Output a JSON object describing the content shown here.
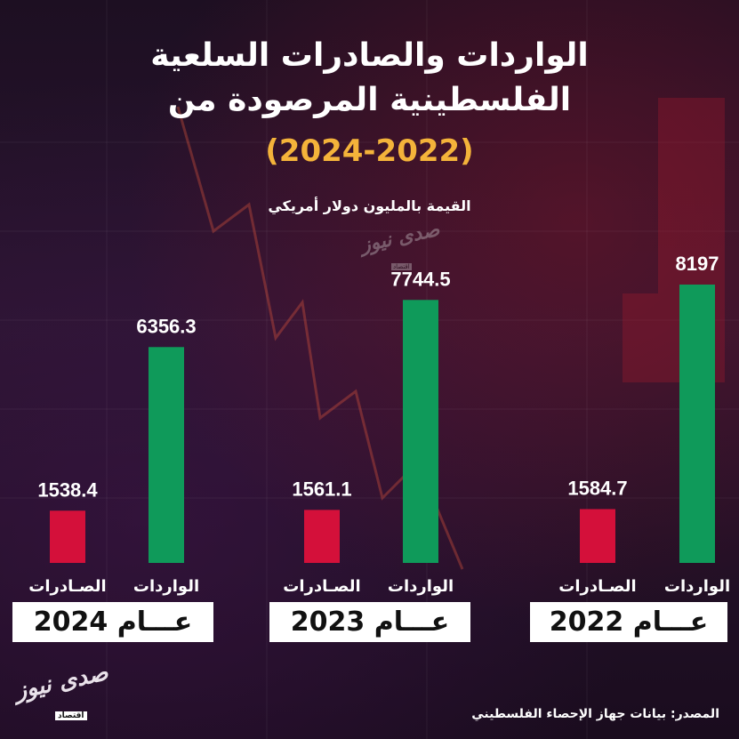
{
  "header": {
    "title_line1": "الواردات والصادرات السلعية",
    "title_line2": "الفلسطينية المرصودة من",
    "title_line3": "(2024-2022)",
    "subtitle": "القيمة بالمليون دولار أمريكي"
  },
  "colors": {
    "exports": "#d4103a",
    "imports": "#0f9a5a",
    "title_accent": "#f4b33a"
  },
  "groups": [
    {
      "year_label": "عـــام 2024",
      "exports_label": "الصـادرات",
      "imports_label": "الواردات"
    },
    {
      "year_label": "عـــام 2023",
      "exports_label": "الصـادرات",
      "imports_label": "الواردات"
    },
    {
      "year_label": "عـــام 2022",
      "exports_label": "الصـادرات",
      "imports_label": "الواردات"
    }
  ],
  "chart_data": {
    "type": "bar",
    "title": "الواردات والصادرات السلعية الفلسطينية المرصودة من (2024-2022)",
    "subtitle": "القيمة بالمليون دولار أمريكي",
    "categories": [
      "2024",
      "2023",
      "2022"
    ],
    "series": [
      {
        "name": "الصـادرات",
        "values": [
          1538.4,
          1561.1,
          1584.7
        ],
        "value_labels": [
          "1538.4",
          "1561.1",
          "1584.7"
        ]
      },
      {
        "name": "الواردات",
        "values": [
          6356.3,
          7744.5,
          8197
        ],
        "value_labels": [
          "6356.3",
          "7744.5",
          "8197"
        ]
      }
    ],
    "ylim": [
      0,
      9000
    ]
  },
  "footer": {
    "source": "المصدر: بيانات جهاز الإحصاء الفلسطيني",
    "logo_text": "صدى نيوز",
    "logo_sub": "اقتصاد"
  }
}
